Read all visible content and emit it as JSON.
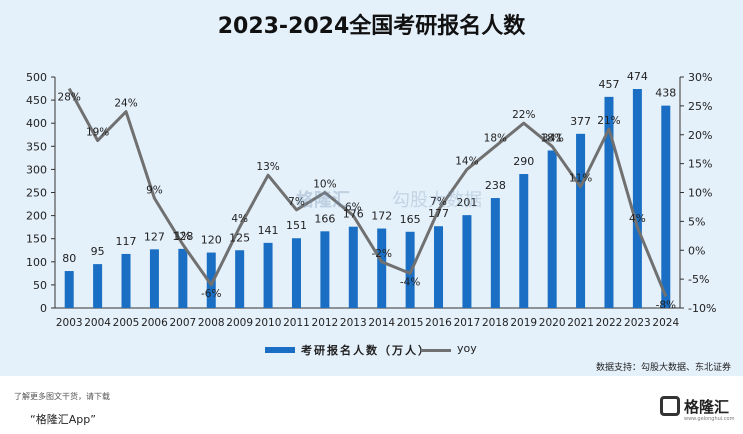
{
  "chart_data": {
    "type": "bar",
    "title": "2023-2024全国考研报名人数",
    "categories": [
      "2003",
      "2004",
      "2005",
      "2006",
      "2007",
      "2008",
      "2009",
      "2010",
      "2011",
      "2012",
      "2013",
      "2014",
      "2015",
      "2016",
      "2017",
      "2018",
      "2019",
      "2020",
      "2021",
      "2022",
      "2023",
      "2024"
    ],
    "series": [
      {
        "name": "考研报名人数（万人）",
        "type": "bar",
        "axis": "left",
        "values": [
          80,
          95,
          117,
          127,
          128,
          120,
          125,
          141,
          151,
          166,
          176,
          172,
          165,
          177,
          201,
          238,
          290,
          341,
          377,
          457,
          474,
          438
        ]
      },
      {
        "name": "yoy",
        "type": "line",
        "axis": "right",
        "values": [
          28,
          19,
          24,
          9,
          1,
          -6,
          4,
          13,
          7,
          10,
          6,
          -2,
          -4,
          7,
          14,
          18,
          22,
          18,
          11,
          21,
          4,
          -8
        ]
      }
    ],
    "y_left_ticks": [
      "0",
      "50",
      "100",
      "150",
      "200",
      "250",
      "300",
      "350",
      "400",
      "450",
      "500"
    ],
    "y_left_lim": [
      0,
      500
    ],
    "y_right_ticks": [
      "-10%",
      "-5%",
      "0%",
      "5%",
      "10%",
      "15%",
      "20%",
      "25%",
      "30%"
    ],
    "y_right_lim": [
      -10,
      30
    ],
    "grid": false,
    "legend_position": "bottom",
    "colors": {
      "bar": "#1a6fc4",
      "line": "#707070",
      "background": "#e4f0fa"
    }
  },
  "source_note": "数据支持：勾股大数据、东北证券",
  "footer": {
    "note": "了解更多图文干货，请下载",
    "app": "“格隆汇App”"
  },
  "logo": {
    "name": "格隆汇",
    "url": "www.gelonghui.com"
  },
  "watermark": {
    "left": "格隆汇",
    "right": "勾股大数据"
  }
}
